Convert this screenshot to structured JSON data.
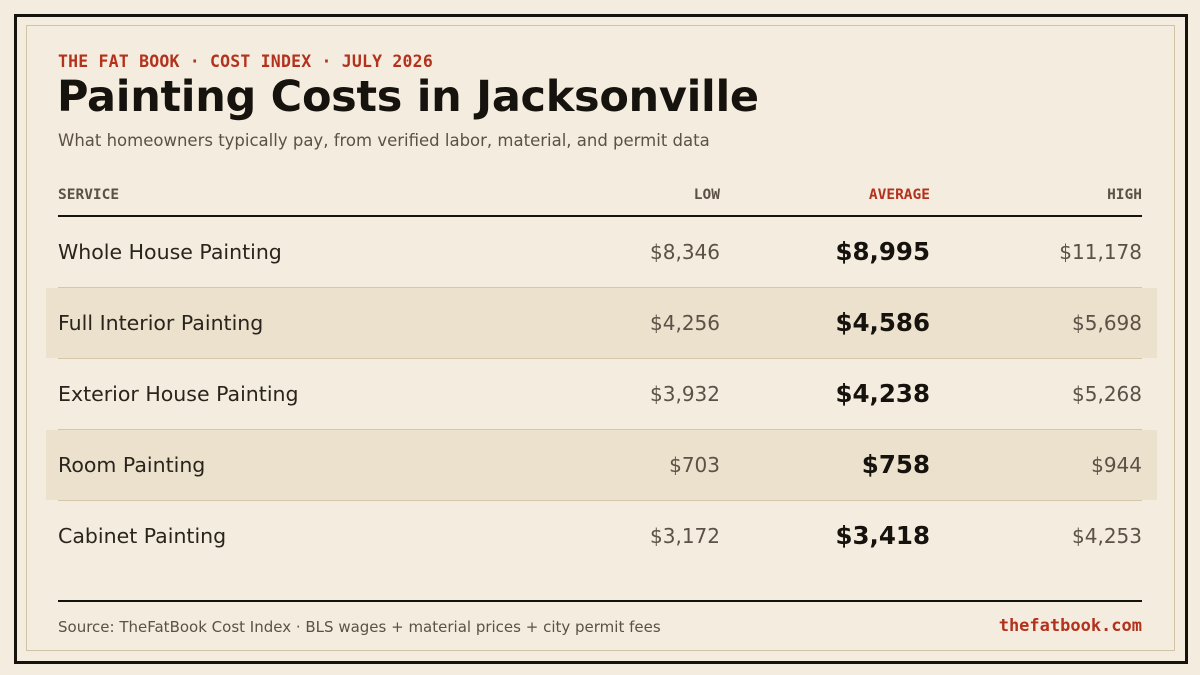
{
  "header": {
    "eyebrow": "THE FAT BOOK · COST INDEX · JULY 2026",
    "title": "Painting Costs in Jacksonville",
    "subtitle": "What homeowners typically pay, from verified labor, material, and permit data"
  },
  "table": {
    "columns": {
      "service": "SERVICE",
      "low": "LOW",
      "average": "AVERAGE",
      "high": "HIGH"
    },
    "rows": [
      {
        "service": "Whole House Painting",
        "low": "$8,346",
        "average": "$8,995",
        "high": "$11,178"
      },
      {
        "service": "Full Interior Painting",
        "low": "$4,256",
        "average": "$4,586",
        "high": "$5,698"
      },
      {
        "service": "Exterior House Painting",
        "low": "$3,932",
        "average": "$4,238",
        "high": "$5,268"
      },
      {
        "service": "Room Painting",
        "low": "$703",
        "average": "$758",
        "high": "$944"
      },
      {
        "service": "Cabinet Painting",
        "low": "$3,172",
        "average": "$3,418",
        "high": "$4,253"
      }
    ]
  },
  "footer": {
    "source": "Source: TheFatBook Cost Index · BLS wages + material prices + city permit fees",
    "brand": "thefatbook.com"
  },
  "colors": {
    "background": "#f4ecde",
    "accent": "#b3321d",
    "ink": "#16120d",
    "muted": "#5b5146",
    "shaded_row": "#ece1cd"
  }
}
